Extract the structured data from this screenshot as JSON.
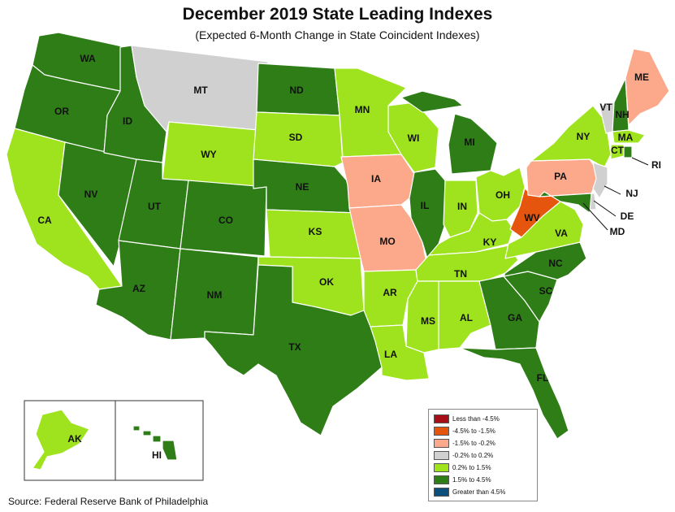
{
  "title": "December 2019 State Leading Indexes",
  "subtitle": "(Expected 6-Month Change in State Coincident Indexes)",
  "source": "Source: Federal Reserve Bank of Philadelphia",
  "colors": {
    "less_than_-4.5": "#a50f15",
    "-4.5_to_-1.5": "#e6550d",
    "-1.5_to_-0.2": "#fca98b",
    "-0.2_to_0.2": "#d0d0d0",
    "0.2_to_1.5": "#9ee31d",
    "1.5_to_4.5": "#2e7d17",
    "greater_than_4.5": "#0b4f7a"
  },
  "legend": [
    {
      "label": "Less than -4.5%",
      "color": "#a50f15"
    },
    {
      "label": "-4.5% to -1.5%",
      "color": "#e6550d"
    },
    {
      "label": "-1.5% to -0.2%",
      "color": "#fca98b"
    },
    {
      "label": "-0.2% to 0.2%",
      "color": "#d0d0d0"
    },
    {
      "label": "0.2% to 1.5%",
      "color": "#9ee31d"
    },
    {
      "label": "1.5% to 4.5%",
      "color": "#2e7d17"
    },
    {
      "label": "Greater than 4.5%",
      "color": "#0b4f7a"
    }
  ],
  "states": [
    {
      "abbr": "WA",
      "category": "1.5% to 4.5%"
    },
    {
      "abbr": "OR",
      "category": "1.5% to 4.5%"
    },
    {
      "abbr": "CA",
      "category": "0.2% to 1.5%"
    },
    {
      "abbr": "NV",
      "category": "1.5% to 4.5%"
    },
    {
      "abbr": "ID",
      "category": "1.5% to 4.5%"
    },
    {
      "abbr": "MT",
      "category": "-0.2% to 0.2%"
    },
    {
      "abbr": "WY",
      "category": "0.2% to 1.5%"
    },
    {
      "abbr": "UT",
      "category": "1.5% to 4.5%"
    },
    {
      "abbr": "AZ",
      "category": "1.5% to 4.5%"
    },
    {
      "abbr": "CO",
      "category": "1.5% to 4.5%"
    },
    {
      "abbr": "NM",
      "category": "1.5% to 4.5%"
    },
    {
      "abbr": "ND",
      "category": "1.5% to 4.5%"
    },
    {
      "abbr": "SD",
      "category": "0.2% to 1.5%"
    },
    {
      "abbr": "NE",
      "category": "1.5% to 4.5%"
    },
    {
      "abbr": "KS",
      "category": "0.2% to 1.5%"
    },
    {
      "abbr": "OK",
      "category": "0.2% to 1.5%"
    },
    {
      "abbr": "TX",
      "category": "1.5% to 4.5%"
    },
    {
      "abbr": "MN",
      "category": "0.2% to 1.5%"
    },
    {
      "abbr": "IA",
      "category": "-1.5% to -0.2%"
    },
    {
      "abbr": "MO",
      "category": "-1.5% to -0.2%"
    },
    {
      "abbr": "AR",
      "category": "0.2% to 1.5%"
    },
    {
      "abbr": "LA",
      "category": "0.2% to 1.5%"
    },
    {
      "abbr": "WI",
      "category": "0.2% to 1.5%"
    },
    {
      "abbr": "IL",
      "category": "1.5% to 4.5%"
    },
    {
      "abbr": "MI",
      "category": "1.5% to 4.5%"
    },
    {
      "abbr": "IN",
      "category": "0.2% to 1.5%"
    },
    {
      "abbr": "OH",
      "category": "0.2% to 1.5%"
    },
    {
      "abbr": "KY",
      "category": "0.2% to 1.5%"
    },
    {
      "abbr": "TN",
      "category": "0.2% to 1.5%"
    },
    {
      "abbr": "MS",
      "category": "0.2% to 1.5%"
    },
    {
      "abbr": "AL",
      "category": "0.2% to 1.5%"
    },
    {
      "abbr": "GA",
      "category": "1.5% to 4.5%"
    },
    {
      "abbr": "FL",
      "category": "1.5% to 4.5%"
    },
    {
      "abbr": "SC",
      "category": "1.5% to 4.5%"
    },
    {
      "abbr": "NC",
      "category": "1.5% to 4.5%"
    },
    {
      "abbr": "VA",
      "category": "0.2% to 1.5%"
    },
    {
      "abbr": "WV",
      "category": "-4.5% to -1.5%"
    },
    {
      "abbr": "PA",
      "category": "-1.5% to -0.2%"
    },
    {
      "abbr": "NY",
      "category": "0.2% to 1.5%"
    },
    {
      "abbr": "VT",
      "category": "-0.2% to 0.2%"
    },
    {
      "abbr": "NH",
      "category": "1.5% to 4.5%"
    },
    {
      "abbr": "ME",
      "category": "-1.5% to -0.2%"
    },
    {
      "abbr": "MA",
      "category": "0.2% to 1.5%"
    },
    {
      "abbr": "CT",
      "category": "0.2% to 1.5%"
    },
    {
      "abbr": "RI",
      "category": "1.5% to 4.5%"
    },
    {
      "abbr": "NJ",
      "category": "-0.2% to 0.2%"
    },
    {
      "abbr": "DE",
      "category": "-0.2% to 0.2%"
    },
    {
      "abbr": "MD",
      "category": "1.5% to 4.5%"
    },
    {
      "abbr": "AK",
      "category": "0.2% to 1.5%"
    },
    {
      "abbr": "HI",
      "category": "1.5% to 4.5%"
    }
  ]
}
